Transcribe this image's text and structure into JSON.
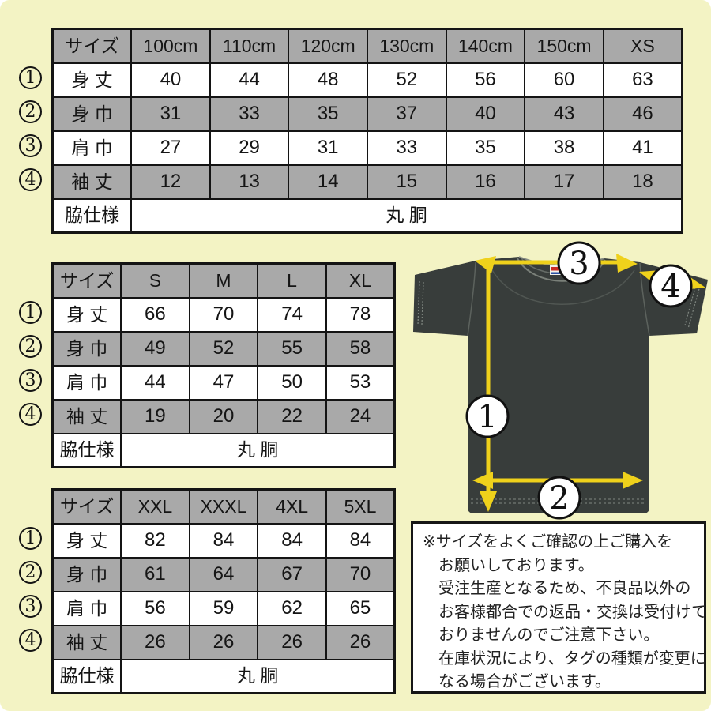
{
  "page": {
    "background_color": "#f3f3c4",
    "table_gray": "#a9a9a9",
    "arrow_yellow": "#efd11b",
    "shirt_color": "#383d3b"
  },
  "tables": [
    {
      "id": "kids-to-xs",
      "header": [
        "サイズ",
        "100cm",
        "110cm",
        "120cm",
        "130cm",
        "140cm",
        "150cm",
        "XS"
      ],
      "rows": [
        {
          "num": "1",
          "label": "身 丈",
          "values": [
            "40",
            "44",
            "48",
            "52",
            "56",
            "60",
            "63"
          ]
        },
        {
          "num": "2",
          "label": "身 巾",
          "values": [
            "31",
            "33",
            "35",
            "37",
            "40",
            "43",
            "46"
          ]
        },
        {
          "num": "3",
          "label": "肩 巾",
          "values": [
            "27",
            "29",
            "31",
            "33",
            "35",
            "38",
            "41"
          ]
        },
        {
          "num": "4",
          "label": "袖 丈",
          "values": [
            "12",
            "13",
            "14",
            "15",
            "16",
            "17",
            "18"
          ]
        }
      ],
      "footer": {
        "label": "脇仕様",
        "value": "丸 胴"
      }
    },
    {
      "id": "s-to-xl",
      "header": [
        "サイズ",
        "S",
        "M",
        "L",
        "XL"
      ],
      "rows": [
        {
          "num": "1",
          "label": "身 丈",
          "values": [
            "66",
            "70",
            "74",
            "78"
          ]
        },
        {
          "num": "2",
          "label": "身 巾",
          "values": [
            "49",
            "52",
            "55",
            "58"
          ]
        },
        {
          "num": "3",
          "label": "肩 巾",
          "values": [
            "44",
            "47",
            "50",
            "53"
          ]
        },
        {
          "num": "4",
          "label": "袖 丈",
          "values": [
            "19",
            "20",
            "22",
            "24"
          ]
        }
      ],
      "footer": {
        "label": "脇仕様",
        "value": "丸 胴"
      }
    },
    {
      "id": "xxl-to-5xl",
      "header": [
        "サイズ",
        "XXL",
        "XXXL",
        "4XL",
        "5XL"
      ],
      "rows": [
        {
          "num": "1",
          "label": "身 丈",
          "values": [
            "82",
            "84",
            "84",
            "84"
          ]
        },
        {
          "num": "2",
          "label": "身 巾",
          "values": [
            "61",
            "64",
            "67",
            "70"
          ]
        },
        {
          "num": "3",
          "label": "肩 巾",
          "values": [
            "56",
            "59",
            "62",
            "65"
          ]
        },
        {
          "num": "4",
          "label": "袖 丈",
          "values": [
            "26",
            "26",
            "26",
            "26"
          ]
        }
      ],
      "footer": {
        "label": "脇仕様",
        "value": "丸 胴"
      }
    }
  ],
  "diagram": {
    "markers": [
      {
        "id": "body-length",
        "label": "1"
      },
      {
        "id": "body-width",
        "label": "2"
      },
      {
        "id": "shoulder-width",
        "label": "3"
      },
      {
        "id": "sleeve-length",
        "label": "4"
      }
    ]
  },
  "note": {
    "lines": [
      "※サイズをよくご確認の上ご購入を",
      "お願いしております。",
      "受注生産となるため、不良品以外の",
      "お客様都合での返品・交換は受付けて",
      "おりませんのでご注意下さい。",
      "在庫状況により、タグの種類が変更に",
      "なる場合がございます。"
    ]
  }
}
